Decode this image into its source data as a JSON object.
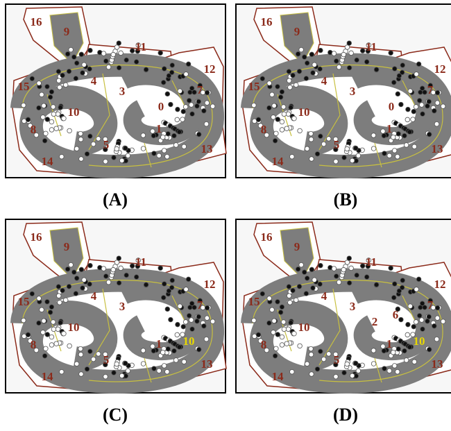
{
  "panels": [
    {
      "caption": "(A)",
      "labels": [
        "16",
        "9",
        "11",
        "12",
        "15",
        "4",
        "3",
        "7",
        "10",
        "0",
        "8",
        "1",
        "5",
        "13",
        "14"
      ]
    },
    {
      "caption": "(B)",
      "labels": [
        "16",
        "9",
        "11",
        "12",
        "15",
        "4",
        "3",
        "7",
        "10",
        "0",
        "8",
        "1",
        "5",
        "13",
        "14"
      ]
    },
    {
      "caption": "(C)",
      "labels": [
        "16",
        "9",
        "11",
        "12",
        "15",
        "4",
        "3",
        "7",
        "10",
        "1",
        "10",
        "8",
        "5",
        "13",
        "14"
      ]
    },
    {
      "caption": "(D)",
      "labels": [
        "16",
        "9",
        "11",
        "12",
        "15",
        "4",
        "3",
        "7",
        "10",
        "2",
        "6",
        "1",
        "10",
        "8",
        "5",
        "13",
        "14"
      ]
    }
  ]
}
